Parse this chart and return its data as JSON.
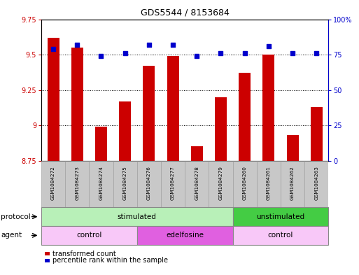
{
  "title": "GDS5544 / 8153684",
  "samples": [
    "GSM1084272",
    "GSM1084273",
    "GSM1084274",
    "GSM1084275",
    "GSM1084276",
    "GSM1084277",
    "GSM1084278",
    "GSM1084279",
    "GSM1084260",
    "GSM1084261",
    "GSM1084262",
    "GSM1084263"
  ],
  "transformed_count": [
    9.62,
    9.55,
    8.99,
    9.17,
    9.42,
    9.49,
    8.85,
    9.2,
    9.37,
    9.5,
    8.93,
    9.13
  ],
  "percentile_rank": [
    79,
    82,
    74,
    76,
    82,
    82,
    74,
    76,
    76,
    81,
    76,
    76
  ],
  "ylim_left": [
    8.75,
    9.75
  ],
  "ylim_right": [
    0,
    100
  ],
  "yticks_left": [
    8.75,
    9.0,
    9.25,
    9.5,
    9.75
  ],
  "ytick_labels_left": [
    "8.75",
    "9",
    "9.25",
    "9.5",
    "9.75"
  ],
  "yticks_right": [
    0,
    25,
    50,
    75,
    100
  ],
  "ytick_labels_right": [
    "0",
    "25",
    "50",
    "75",
    "100%"
  ],
  "bar_color": "#cc0000",
  "dot_color": "#0000cc",
  "bar_width": 0.5,
  "protocol_groups": [
    {
      "label": "stimulated",
      "start": 0,
      "end": 8,
      "color": "#b8f0b8"
    },
    {
      "label": "unstimulated",
      "start": 8,
      "end": 12,
      "color": "#44cc44"
    }
  ],
  "agent_groups": [
    {
      "label": "control",
      "start": 0,
      "end": 4,
      "color": "#f8c8f8"
    },
    {
      "label": "edelfosine",
      "start": 4,
      "end": 8,
      "color": "#e060e0"
    },
    {
      "label": "control",
      "start": 8,
      "end": 12,
      "color": "#f8c8f8"
    }
  ],
  "legend_items": [
    {
      "label": "transformed count",
      "color": "#cc0000"
    },
    {
      "label": "percentile rank within the sample",
      "color": "#0000cc"
    }
  ],
  "grid_color": "black",
  "background_color": "white",
  "plot_bg": "white",
  "left_label_color": "#cc0000",
  "right_label_color": "#0000cc",
  "sample_bg": "#c8c8c8"
}
